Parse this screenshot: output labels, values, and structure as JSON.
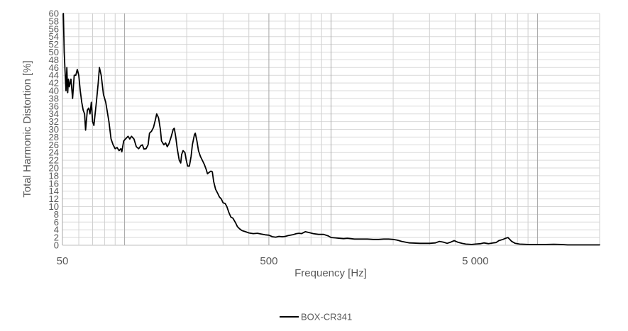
{
  "chart_data": {
    "type": "line",
    "xscale": "log",
    "xlabel": "Frequency [Hz]",
    "ylabel": "Total Harmonic Distortion [%]",
    "xlim": [
      50,
      20000
    ],
    "ylim": [
      0,
      60
    ],
    "x_tick_labels": [
      {
        "value": 50,
        "label": "50"
      },
      {
        "value": 500,
        "label": "500"
      },
      {
        "value": 5000,
        "label": "5 000"
      }
    ],
    "y_ticks": [
      0,
      2,
      4,
      6,
      8,
      10,
      12,
      14,
      16,
      18,
      20,
      22,
      24,
      26,
      28,
      30,
      32,
      34,
      36,
      38,
      40,
      42,
      44,
      46,
      48,
      50,
      52,
      54,
      56,
      58,
      60
    ],
    "grid": true,
    "legend": "bottom",
    "series": [
      {
        "name": "BOX-CR341",
        "color": "#000000",
        "points": [
          [
            50.5,
            60
          ],
          [
            51,
            50
          ],
          [
            51.5,
            45
          ],
          [
            52,
            40
          ],
          [
            52.5,
            46
          ],
          [
            53,
            39.5
          ],
          [
            53.5,
            43
          ],
          [
            54,
            41
          ],
          [
            55,
            43
          ],
          [
            56,
            38
          ],
          [
            57,
            44
          ],
          [
            58,
            44
          ],
          [
            59,
            45.5
          ],
          [
            60,
            44
          ],
          [
            61,
            40
          ],
          [
            62,
            37
          ],
          [
            63,
            35
          ],
          [
            64,
            34
          ],
          [
            64.7,
            29.8
          ],
          [
            66,
            35
          ],
          [
            67,
            35.5
          ],
          [
            68,
            34
          ],
          [
            69,
            37
          ],
          [
            70,
            32
          ],
          [
            71,
            31
          ],
          [
            73,
            37
          ],
          [
            74.5,
            42
          ],
          [
            75.5,
            46
          ],
          [
            77,
            44
          ],
          [
            79,
            39
          ],
          [
            81,
            37
          ],
          [
            84,
            32
          ],
          [
            86,
            27.5
          ],
          [
            88,
            26
          ],
          [
            90,
            25
          ],
          [
            92,
            25.3
          ],
          [
            94,
            24.5
          ],
          [
            96,
            25
          ],
          [
            97,
            24.2
          ],
          [
            99,
            27
          ],
          [
            101,
            27.5
          ],
          [
            104,
            28.2
          ],
          [
            106,
            27.5
          ],
          [
            108,
            28.2
          ],
          [
            111,
            27.5
          ],
          [
            114,
            25.5
          ],
          [
            117,
            25
          ],
          [
            120,
            25.8
          ],
          [
            122,
            26
          ],
          [
            124,
            24.9
          ],
          [
            127,
            25
          ],
          [
            130,
            26
          ],
          [
            132,
            29
          ],
          [
            135,
            29.5
          ],
          [
            138,
            30.5
          ],
          [
            141,
            32.5
          ],
          [
            143,
            34
          ],
          [
            146,
            33
          ],
          [
            149,
            30
          ],
          [
            151,
            27
          ],
          [
            155,
            26
          ],
          [
            158,
            26.5
          ],
          [
            161,
            25.5
          ],
          [
            164,
            26.3
          ],
          [
            168,
            28
          ],
          [
            172,
            30
          ],
          [
            174,
            30.3
          ],
          [
            177,
            28
          ],
          [
            180,
            25
          ],
          [
            184,
            22
          ],
          [
            187,
            21.3
          ],
          [
            189,
            23.5
          ],
          [
            192,
            24.5
          ],
          [
            196,
            24
          ],
          [
            199,
            22
          ],
          [
            202,
            20.5
          ],
          [
            206,
            20.5
          ],
          [
            210,
            23
          ],
          [
            213,
            26
          ],
          [
            218,
            28.6
          ],
          [
            220,
            29
          ],
          [
            224,
            27
          ],
          [
            228,
            24.5
          ],
          [
            233,
            23
          ],
          [
            238,
            22
          ],
          [
            243,
            21
          ],
          [
            249,
            19.5
          ],
          [
            252,
            18.5
          ],
          [
            256,
            18.8
          ],
          [
            262,
            19.2
          ],
          [
            266,
            19
          ],
          [
            270,
            16.5
          ],
          [
            276,
            14.5
          ],
          [
            282,
            13.5
          ],
          [
            288,
            12.5
          ],
          [
            294,
            12
          ],
          [
            300,
            11
          ],
          [
            307,
            10.8
          ],
          [
            313,
            10
          ],
          [
            320,
            8.5
          ],
          [
            327,
            7.3
          ],
          [
            335,
            7
          ],
          [
            345,
            5.8
          ],
          [
            352,
            4.8
          ],
          [
            360,
            4.3
          ],
          [
            370,
            3.8
          ],
          [
            385,
            3.5
          ],
          [
            400,
            3.2
          ],
          [
            420,
            3
          ],
          [
            440,
            3.1
          ],
          [
            460,
            2.9
          ],
          [
            480,
            2.7
          ],
          [
            500,
            2.6
          ],
          [
            520,
            2.2
          ],
          [
            540,
            2.1
          ],
          [
            560,
            2.3
          ],
          [
            580,
            2.2
          ],
          [
            600,
            2.3
          ],
          [
            620,
            2.5
          ],
          [
            650,
            2.7
          ],
          [
            680,
            3
          ],
          [
            700,
            3.1
          ],
          [
            720,
            3
          ],
          [
            750,
            3.5
          ],
          [
            780,
            3.3
          ],
          [
            820,
            3
          ],
          [
            870,
            2.8
          ],
          [
            920,
            2.8
          ],
          [
            970,
            2.4
          ],
          [
            1000,
            2
          ],
          [
            1050,
            1.9
          ],
          [
            1100,
            1.8
          ],
          [
            1150,
            1.7
          ],
          [
            1200,
            1.8
          ],
          [
            1300,
            1.6
          ],
          [
            1400,
            1.6
          ],
          [
            1500,
            1.6
          ],
          [
            1600,
            1.5
          ],
          [
            1700,
            1.5
          ],
          [
            1800,
            1.6
          ],
          [
            1900,
            1.6
          ],
          [
            2000,
            1.5
          ],
          [
            2100,
            1.3
          ],
          [
            2200,
            1
          ],
          [
            2400,
            0.6
          ],
          [
            2700,
            0.5
          ],
          [
            3000,
            0.5
          ],
          [
            3200,
            0.6
          ],
          [
            3350,
            1
          ],
          [
            3500,
            0.8
          ],
          [
            3650,
            0.5
          ],
          [
            3800,
            0.8
          ],
          [
            3950,
            1.2
          ],
          [
            4100,
            0.8
          ],
          [
            4300,
            0.5
          ],
          [
            4500,
            0.3
          ],
          [
            4800,
            0.2
          ],
          [
            5000,
            0.3
          ],
          [
            5300,
            0.4
          ],
          [
            5500,
            0.6
          ],
          [
            5800,
            0.4
          ],
          [
            6100,
            0.6
          ],
          [
            6300,
            0.7
          ],
          [
            6500,
            1.2
          ],
          [
            6800,
            1.5
          ],
          [
            7000,
            1.8
          ],
          [
            7200,
            2
          ],
          [
            7500,
            1
          ],
          [
            7800,
            0.5
          ],
          [
            8200,
            0.3
          ],
          [
            9000,
            0.2
          ],
          [
            10000,
            0.2
          ],
          [
            11000,
            0.2
          ],
          [
            12000,
            0.25
          ],
          [
            13000,
            0.2
          ],
          [
            14000,
            0.1
          ],
          [
            16000,
            0.1
          ],
          [
            18000,
            0.1
          ],
          [
            20000,
            0.1
          ]
        ]
      }
    ]
  }
}
